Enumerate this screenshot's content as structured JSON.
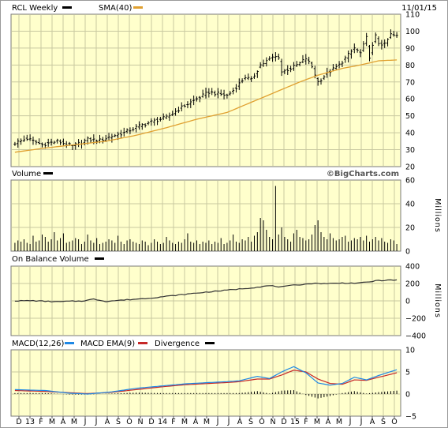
{
  "colors": {
    "panel_bg": "#ffffcc",
    "grid": "#c8c8a0",
    "frame": "#7a7a7a",
    "price": "#000000",
    "sma": "#e0a030",
    "macd": "#1e88e5",
    "macd_ema": "#c62828",
    "divergence": "#000000"
  },
  "chart_data": [
    {
      "type": "ohlc",
      "title": "RCL Weekly",
      "legend": [
        "RCL Weekly",
        "SMA(40)"
      ],
      "date_label": "11/01/15",
      "watermark": "©BigCharts.com",
      "y_ticks": [
        20,
        30,
        40,
        50,
        60,
        70,
        80,
        90,
        100,
        110
      ],
      "ylim": [
        20,
        110
      ],
      "x_ticks": [
        "D",
        "13",
        "F",
        "M",
        "A",
        "M",
        "J",
        "J",
        "A",
        "S",
        "O",
        "N",
        "D",
        "14",
        "F",
        "M",
        "A",
        "M",
        "J",
        "J",
        "A",
        "S",
        "O",
        "N",
        "D",
        "15",
        "F",
        "M",
        "A",
        "M",
        "J",
        "J",
        "A",
        "S",
        "O"
      ],
      "price_anchors": [
        [
          0,
          34
        ],
        [
          4,
          36.5
        ],
        [
          9,
          33
        ],
        [
          14,
          35
        ],
        [
          19,
          32
        ],
        [
          24,
          36
        ],
        [
          28,
          35.5
        ],
        [
          32,
          38
        ],
        [
          36,
          40
        ],
        [
          41,
          44
        ],
        [
          46,
          47
        ],
        [
          50,
          49
        ],
        [
          55,
          55
        ],
        [
          59,
          59
        ],
        [
          64,
          64
        ],
        [
          70,
          62
        ],
        [
          72,
          65
        ],
        [
          76,
          73
        ],
        [
          78,
          71
        ],
        [
          81,
          80
        ],
        [
          85,
          84.5
        ],
        [
          87,
          85
        ],
        [
          88,
          76
        ],
        [
          91,
          78
        ],
        [
          94,
          81
        ],
        [
          96,
          84
        ],
        [
          98,
          79
        ],
        [
          100,
          70
        ],
        [
          103,
          75
        ],
        [
          107,
          80
        ],
        [
          112,
          90
        ],
        [
          114,
          87
        ],
        [
          116,
          96
        ],
        [
          117,
          85
        ],
        [
          119,
          97
        ],
        [
          120,
          93
        ],
        [
          122,
          92
        ],
        [
          124,
          98
        ],
        [
          126,
          97
        ]
      ],
      "sma_anchors": [
        [
          0,
          28.5
        ],
        [
          10,
          31
        ],
        [
          20,
          33
        ],
        [
          30,
          35
        ],
        [
          40,
          38.5
        ],
        [
          50,
          43
        ],
        [
          60,
          48
        ],
        [
          70,
          52
        ],
        [
          78,
          58
        ],
        [
          86,
          64
        ],
        [
          94,
          70
        ],
        [
          100,
          74
        ],
        [
          108,
          78
        ],
        [
          114,
          80
        ],
        [
          120,
          82.5
        ],
        [
          126,
          83
        ]
      ],
      "n_weeks": 127
    },
    {
      "type": "bar",
      "title": "Volume",
      "unit": "Millions",
      "y_ticks": [
        0,
        20,
        40,
        60
      ],
      "ylim": [
        0,
        60
      ],
      "volume_values": [
        7,
        9,
        8,
        10,
        7,
        6,
        13,
        8,
        9,
        14,
        12,
        8,
        10,
        16,
        9,
        11,
        15,
        7,
        8,
        9,
        11,
        10,
        6,
        8,
        14,
        9,
        7,
        11,
        6,
        7,
        8,
        10,
        9,
        7,
        13,
        8,
        6,
        9,
        10,
        8,
        7,
        6,
        9,
        8,
        5,
        7,
        10,
        8,
        6,
        7,
        12,
        9,
        7,
        6,
        8,
        7,
        10,
        15,
        8,
        7,
        9,
        6,
        8,
        7,
        9,
        6,
        8,
        7,
        11,
        6,
        7,
        9,
        14,
        8,
        7,
        10,
        9,
        12,
        8,
        13,
        16,
        28,
        26,
        18,
        12,
        10,
        55,
        14,
        20,
        12,
        10,
        8,
        15,
        18,
        12,
        11,
        9,
        10,
        14,
        22,
        26,
        16,
        12,
        10,
        15,
        11,
        9,
        10,
        12,
        13,
        8,
        9,
        11,
        10,
        12,
        9,
        13,
        8,
        10,
        12,
        9,
        11,
        8,
        7,
        10,
        9,
        6
      ],
      "xlim": [
        0,
        127
      ]
    },
    {
      "type": "line",
      "title": "On Balance Volume",
      "unit": "Millions",
      "y_ticks": [
        -400,
        -200,
        0,
        200,
        400
      ],
      "ylim": [
        -400,
        400
      ],
      "obv_anchors": [
        [
          0,
          0
        ],
        [
          6,
          2
        ],
        [
          10,
          -5
        ],
        [
          14,
          -10
        ],
        [
          18,
          -5
        ],
        [
          22,
          -2
        ],
        [
          26,
          20
        ],
        [
          30,
          -5
        ],
        [
          36,
          10
        ],
        [
          44,
          30
        ],
        [
          52,
          60
        ],
        [
          60,
          90
        ],
        [
          66,
          110
        ],
        [
          72,
          130
        ],
        [
          78,
          150
        ],
        [
          84,
          175
        ],
        [
          88,
          160
        ],
        [
          92,
          180
        ],
        [
          98,
          200
        ],
        [
          104,
          200
        ],
        [
          108,
          205
        ],
        [
          114,
          205
        ],
        [
          120,
          235
        ],
        [
          126,
          240
        ]
      ]
    },
    {
      "type": "line",
      "title": "MACD",
      "legend": [
        "MACD(12,26)",
        "MACD EMA(9)",
        "Divergence"
      ],
      "y_ticks": [
        -5,
        0,
        5,
        10
      ],
      "ylim": [
        -5,
        10
      ],
      "macd_anchors": [
        [
          0,
          1.0
        ],
        [
          10,
          0.8
        ],
        [
          18,
          0.2
        ],
        [
          24,
          0.0
        ],
        [
          32,
          0.5
        ],
        [
          40,
          1.3
        ],
        [
          48,
          1.8
        ],
        [
          56,
          2.3
        ],
        [
          64,
          2.6
        ],
        [
          70,
          2.8
        ],
        [
          74,
          3.0
        ],
        [
          80,
          4.0
        ],
        [
          84,
          3.5
        ],
        [
          88,
          5.0
        ],
        [
          92,
          6.2
        ],
        [
          96,
          4.8
        ],
        [
          100,
          2.5
        ],
        [
          104,
          2.0
        ],
        [
          108,
          2.4
        ],
        [
          112,
          3.8
        ],
        [
          116,
          3.2
        ],
        [
          120,
          4.2
        ],
        [
          126,
          5.5
        ]
      ],
      "ema_anchors": [
        [
          0,
          0.8
        ],
        [
          10,
          0.6
        ],
        [
          18,
          0.3
        ],
        [
          24,
          0.1
        ],
        [
          32,
          0.4
        ],
        [
          40,
          1.0
        ],
        [
          48,
          1.6
        ],
        [
          56,
          2.1
        ],
        [
          64,
          2.4
        ],
        [
          70,
          2.6
        ],
        [
          74,
          2.8
        ],
        [
          80,
          3.4
        ],
        [
          84,
          3.4
        ],
        [
          88,
          4.3
        ],
        [
          92,
          5.4
        ],
        [
          96,
          5.0
        ],
        [
          100,
          3.4
        ],
        [
          104,
          2.4
        ],
        [
          108,
          2.2
        ],
        [
          112,
          3.2
        ],
        [
          116,
          3.1
        ],
        [
          120,
          3.8
        ],
        [
          126,
          4.8
        ]
      ]
    }
  ],
  "panel_labels": {
    "price_title": "RCL Weekly",
    "sma_label": "SMA(40)",
    "volume_title": "Volume",
    "obv_title": "On Balance Volume",
    "macd_label": "MACD(12,26)",
    "ema_label": "MACD EMA(9)",
    "div_label": "Divergence",
    "millions": "Millions"
  }
}
